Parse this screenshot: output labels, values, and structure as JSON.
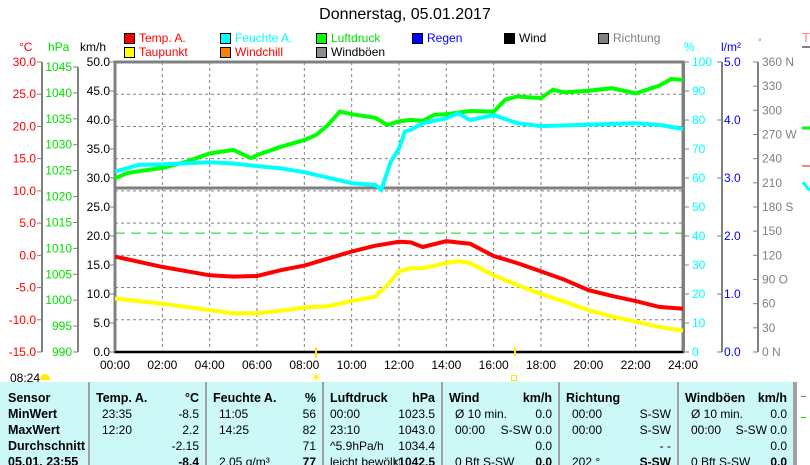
{
  "title": "Donnerstag, 05.01.2017",
  "legend": [
    {
      "label": "Temp. A.",
      "color": "#ff0000",
      "text": "#ff0000"
    },
    {
      "label": "Feuchte A.",
      "color": "#00ffff",
      "text": "#00ffff"
    },
    {
      "label": "Luftdruck",
      "color": "#00ff00",
      "text": "#00e000"
    },
    {
      "label": "Regen",
      "color": "#0000ff",
      "text": "#0000ff"
    },
    {
      "label": "Wind",
      "color": "#000000",
      "text": "#000000"
    },
    {
      "label": "Richtung",
      "color": "#808080",
      "text": "#808080"
    },
    {
      "label": "Taupunkt",
      "color": "#ffff00",
      "text": "#ff0000"
    },
    {
      "label": "Windchill",
      "color": "#ff8000",
      "text": "#ff0000"
    },
    {
      "label": "Windböen",
      "color": "#8c8c8c",
      "text": "#000000"
    }
  ],
  "units": {
    "temp": "°C",
    "pressure": "hPa",
    "speed": "km/h",
    "humidity": "%",
    "rain": "l/m²",
    "direction": "°",
    "right_marker": "T"
  },
  "sun": {
    "sunrise_label": "08:24"
  },
  "chart_data": {
    "type": "line",
    "title": "Donnerstag, 05.01.2017",
    "x_range": [
      0,
      24
    ],
    "x_ticks": [
      "00:00",
      "02:00",
      "04:00",
      "06:00",
      "08:00",
      "10:00",
      "12:00",
      "14:00",
      "16:00",
      "18:00",
      "20:00",
      "22:00",
      "24:00"
    ],
    "axes": {
      "temp": {
        "range": [
          -15,
          30
        ],
        "ticks": [
          "30.0",
          "25.0",
          "20.0",
          "15.0",
          "10.0",
          "5.0",
          "0.0",
          "-5.0",
          "-10.0",
          "-15.0"
        ],
        "color": "#ff0000"
      },
      "pressure": {
        "range": [
          990,
          1045
        ],
        "ticks": [
          "1045",
          "1040",
          "1035",
          "1030",
          "1025",
          "1020",
          "1015",
          "1010",
          "1005",
          "1000",
          "995",
          "990"
        ],
        "color": "#00e000"
      },
      "speed": {
        "range": [
          0,
          50
        ],
        "ticks": [
          "50.0",
          "45.0",
          "40.0",
          "35.0",
          "30.0",
          "25.0",
          "20.0",
          "15.0",
          "10.0",
          "5.0",
          "0.0"
        ],
        "color": "#000000"
      },
      "humidity": {
        "range": [
          0,
          100
        ],
        "ticks": [
          "100",
          "90",
          "80",
          "70",
          "60",
          "50",
          "40",
          "30",
          "20",
          "10",
          "0"
        ],
        "color": "#00ffff"
      },
      "rain": {
        "range": [
          0,
          5
        ],
        "ticks": [
          "5.0",
          "4.0",
          "3.0",
          "2.0",
          "1.0",
          "0.0"
        ],
        "color": "#0000ff"
      },
      "direction": {
        "range": [
          0,
          360
        ],
        "ticks": [
          "360 N",
          "330",
          "300",
          "270 W",
          "240",
          "210",
          "180 S",
          "150",
          "120",
          "90  O",
          "60",
          "30",
          "0   N"
        ],
        "color": "#808080"
      }
    },
    "series": [
      {
        "name": "Temp. A.",
        "axis": "temp",
        "color": "#ff0000",
        "x": [
          0,
          2,
          4,
          5,
          6,
          7,
          8,
          9,
          10,
          11,
          12,
          12.5,
          13,
          14,
          15,
          16,
          17,
          18,
          19,
          20,
          21,
          22,
          23,
          24
        ],
        "values": [
          -0.2,
          -1.8,
          -3.1,
          -3.3,
          -3.2,
          -2.3,
          -1.6,
          -0.5,
          0.6,
          1.5,
          2.1,
          2.0,
          1.3,
          2.2,
          1.8,
          -0.1,
          -1.2,
          -2.5,
          -3.8,
          -5.4,
          -6.3,
          -7.1,
          -8.0,
          -8.3
        ]
      },
      {
        "name": "Taupunkt",
        "axis": "temp",
        "color": "#ffff00",
        "x": [
          0,
          2,
          4,
          5,
          6,
          7,
          8,
          9,
          10,
          11,
          11.5,
          12,
          12.5,
          13,
          14,
          14.5,
          15,
          16,
          17,
          18,
          19,
          20,
          21,
          22,
          23,
          24
        ],
        "values": [
          -6.7,
          -7.5,
          -8.5,
          -9.0,
          -9.0,
          -8.6,
          -8.1,
          -7.9,
          -7.1,
          -6.4,
          -4.6,
          -2.5,
          -2.0,
          -2.0,
          -1.2,
          -0.9,
          -1.2,
          -3.1,
          -4.6,
          -6.0,
          -7.2,
          -8.5,
          -9.5,
          -10.3,
          -11.1,
          -11.7
        ]
      },
      {
        "name": "Luftdruck",
        "axis": "pressure",
        "color": "#00ff00",
        "x": [
          0,
          0.5,
          1,
          2,
          3,
          4,
          5,
          5.75,
          6,
          7,
          8,
          8.5,
          9,
          9.5,
          10,
          11,
          11.5,
          12,
          12.5,
          13,
          13.5,
          14,
          15,
          16,
          16.5,
          17,
          18,
          18.5,
          19,
          20,
          21,
          22,
          23,
          23.5,
          24
        ],
        "values": [
          1023.5,
          1024.5,
          1024.9,
          1025.5,
          1026.7,
          1028.3,
          1029.0,
          1027.4,
          1028.0,
          1029.6,
          1030.9,
          1031.9,
          1033.8,
          1036.4,
          1035.9,
          1035.2,
          1033.8,
          1034.5,
          1034.8,
          1034.6,
          1035.8,
          1035.9,
          1036.5,
          1036.4,
          1038.7,
          1039.3,
          1039.0,
          1040.6,
          1040.1,
          1040.4,
          1040.9,
          1039.9,
          1041.4,
          1042.7,
          1042.5
        ]
      },
      {
        "name": "Feuchte A.",
        "axis": "humidity",
        "color": "#00ffff",
        "x": [
          0,
          1,
          2,
          4,
          5,
          6,
          7,
          8,
          9,
          10,
          11,
          11.25,
          11.65,
          12,
          12.25,
          12.5,
          13,
          14,
          14.5,
          15,
          16,
          17,
          18,
          22,
          23,
          24
        ],
        "values": [
          62.2,
          64.5,
          64.7,
          65.4,
          65,
          64.1,
          63.3,
          62,
          60.1,
          58.2,
          57.6,
          55.9,
          65.6,
          70.2,
          76,
          76.6,
          78.9,
          80.6,
          82.3,
          80,
          81.7,
          78.9,
          77.9,
          78.9,
          78.3,
          76.9
        ]
      },
      {
        "name": "Regen",
        "axis": "rain",
        "color": "#0000ff",
        "x": [
          0,
          24
        ],
        "values": [
          0,
          0
        ]
      },
      {
        "name": "Wind",
        "axis": "speed",
        "color": "#000000",
        "x": [
          0,
          24
        ],
        "values": [
          0,
          0
        ]
      }
    ],
    "reference_line": {
      "axis": "humidity",
      "value": 41,
      "color": "#00e000"
    },
    "grid": true
  },
  "table": {
    "sensor": {
      "header": "Sensor",
      "rows": [
        "MinWert",
        "MaxWert",
        "Durchschnitt",
        "05.01. 23:55"
      ]
    },
    "columns": [
      {
        "header": "Temp. A.",
        "unit": "°C",
        "rows": [
          [
            "23:35",
            "-8.5"
          ],
          [
            "12:20",
            "2.2"
          ],
          [
            "",
            "-2.15"
          ],
          [
            "",
            "-8.4"
          ]
        ]
      },
      {
        "header": "Feuchte A.",
        "unit": "%",
        "rows": [
          [
            "11:05",
            "56"
          ],
          [
            "14:25",
            "82"
          ],
          [
            "",
            "71"
          ],
          [
            "2.05 g/m³",
            "77"
          ]
        ]
      },
      {
        "header": "Luftdruck",
        "unit": "hPa",
        "rows": [
          [
            "00:00",
            "1023.5"
          ],
          [
            "23:10",
            "1043.0"
          ],
          [
            "^5.9hPa/h",
            "1034.4"
          ],
          [
            "leicht bewölkt",
            "↑1042.5"
          ]
        ]
      },
      {
        "header": "Wind",
        "unit": "km/h",
        "rows": [
          [
            "Ø 10 min.",
            "0.0"
          ],
          [
            "00:00",
            "S-SW 0.0"
          ],
          [
            "",
            "0.0"
          ],
          [
            "0 Bft S-SW",
            "0.0"
          ]
        ]
      },
      {
        "header": "Richtung",
        "unit": "",
        "rows": [
          [
            "00:00",
            "S-SW"
          ],
          [
            "00:00",
            "S-SW"
          ],
          [
            "",
            "- -"
          ],
          [
            "202 °",
            "S-SW"
          ]
        ]
      },
      {
        "header": "Windböen",
        "unit": "km/h",
        "rows": [
          [
            "Ø 10 min.",
            "0.0"
          ],
          [
            "00:00",
            "S-SW 0.0"
          ],
          [
            "",
            "0.0"
          ],
          [
            "0 Bft S-SW",
            "0.0"
          ]
        ]
      }
    ]
  }
}
